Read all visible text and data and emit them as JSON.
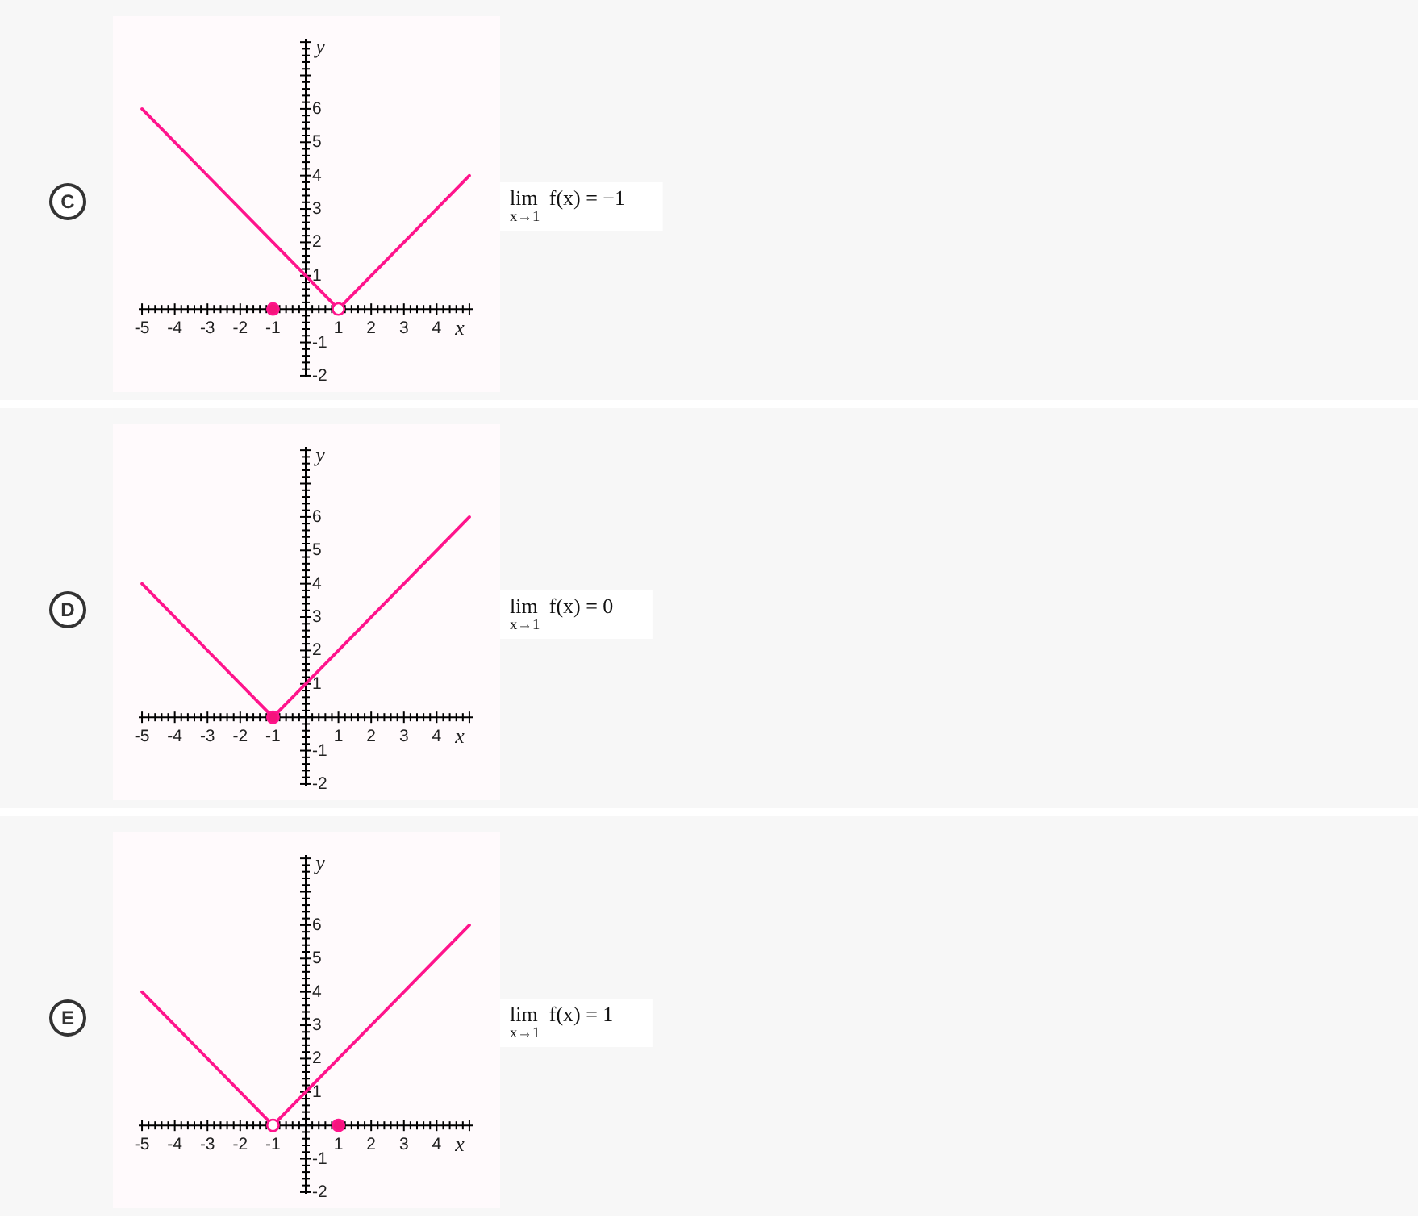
{
  "chart_data": [
    {
      "type": "line",
      "title": "C",
      "xlabel": "x",
      "ylabel": "y",
      "annotations": [
        "lim$_{x→1}$ f(x) = −1"
      ],
      "xlim": [
        -5.1,
        5.1
      ],
      "ylim": [
        -2.05,
        8.1
      ],
      "xticks": [
        -5,
        {
          "value": -4.8,
          "label": null
        },
        {
          "value": -4.6,
          "label": null
        },
        {
          "value": -4.4,
          "label": null
        },
        {
          "value": -4.2,
          "label": null
        },
        -4,
        {
          "value": -3.8,
          "label": null
        },
        {
          "value": -3.6,
          "label": null
        },
        {
          "value": -3.4,
          "label": null
        },
        {
          "value": -3.2,
          "label": null
        },
        -3,
        {
          "value": -2.8,
          "label": null
        },
        {
          "value": -2.6,
          "label": null
        },
        {
          "value": -2.4,
          "label": null
        },
        {
          "value": -2.2,
          "label": null
        },
        -2,
        {
          "value": -1.8,
          "label": null
        },
        {
          "value": -1.6,
          "label": null
        },
        {
          "value": -1.4,
          "label": null
        },
        {
          "value": -1.2,
          "label": null
        },
        -1,
        {
          "value": -0.8,
          "label": null
        },
        {
          "value": -0.6,
          "label": null
        },
        {
          "value": -0.4,
          "label": null
        },
        {
          "value": -0.2,
          "label": null
        },
        {
          "value": 0,
          "label": null
        },
        {
          "value": 0.2,
          "label": null
        },
        {
          "value": 0.4,
          "label": null
        },
        {
          "value": 0.6,
          "label": null
        },
        {
          "value": 0.8,
          "label": null
        },
        1,
        {
          "value": 1.2,
          "label": null
        },
        {
          "value": 1.4,
          "label": null
        },
        {
          "value": 1.6,
          "label": null
        },
        {
          "value": 1.8,
          "label": null
        },
        2,
        {
          "value": 2.2,
          "label": null
        },
        {
          "value": 2.4,
          "label": null
        },
        {
          "value": 2.6,
          "label": null
        },
        {
          "value": 2.8,
          "label": null
        },
        3,
        {
          "value": 3.2,
          "label": null
        },
        {
          "value": 3.4,
          "label": null
        },
        {
          "value": 3.6,
          "label": null
        },
        {
          "value": 3.8,
          "label": null
        },
        4,
        {
          "value": 4.2,
          "label": null
        },
        {
          "value": 4.4,
          "label": null
        },
        {
          "value": 4.6,
          "label": null
        },
        {
          "value": 4.8,
          "label": null
        },
        {
          "value": 5,
          "label": null
        }
      ],
      "yticks": [
        -2,
        {
          "value": -1.8,
          "label": null
        },
        {
          "value": -1.6,
          "label": null
        },
        {
          "value": -1.4,
          "label": null
        },
        {
          "value": -1.2,
          "label": null
        },
        -1,
        {
          "value": -0.8,
          "label": null
        },
        {
          "value": -0.6,
          "label": null
        },
        {
          "value": -0.4,
          "label": null
        },
        {
          "value": -0.2,
          "label": null
        },
        {
          "value": 0,
          "label": null
        },
        {
          "value": 0.2,
          "label": null
        },
        {
          "value": 0.4,
          "label": null
        },
        {
          "value": 0.6,
          "label": null
        },
        {
          "value": 0.8,
          "label": null
        },
        1,
        {
          "value": 1.2,
          "label": null
        },
        {
          "value": 1.4,
          "label": null
        },
        {
          "value": 1.6,
          "label": null
        },
        {
          "value": 1.8,
          "label": null
        },
        2,
        {
          "value": 2.2,
          "label": null
        },
        {
          "value": 2.4,
          "label": null
        },
        {
          "value": 2.6,
          "label": null
        },
        {
          "value": 2.8,
          "label": null
        },
        3,
        {
          "value": 3.2,
          "label": null
        },
        {
          "value": 3.4,
          "label": null
        },
        {
          "value": 3.6,
          "label": null
        },
        {
          "value": 3.8,
          "label": null
        },
        4,
        {
          "value": 4.2,
          "label": null
        },
        {
          "value": 4.4,
          "label": null
        },
        {
          "value": 4.6,
          "label": null
        },
        {
          "value": 4.8,
          "label": null
        },
        5,
        {
          "value": 5.2,
          "label": null
        },
        {
          "value": 5.4,
          "label": null
        },
        {
          "value": 5.6,
          "label": null
        },
        {
          "value": 5.8,
          "label": null
        },
        6,
        {
          "value": 6.2,
          "label": null
        },
        {
          "value": 6.4,
          "label": null
        },
        {
          "value": 6.6,
          "label": null
        },
        {
          "value": 6.8,
          "label": null
        },
        {
          "value": 7,
          "label": null
        },
        {
          "value": 7.2,
          "label": null
        },
        {
          "value": 7.4,
          "label": null
        },
        {
          "value": 7.6,
          "label": null
        },
        {
          "value": 7.8,
          "label": null
        },
        {
          "value": 8,
          "label": null
        }
      ],
      "series": [
        {
          "color": "#ff148c",
          "x": [
            -5,
            1
          ],
          "values": [
            6,
            0
          ]
        },
        {
          "color": "#ff148c",
          "x": [
            1,
            5
          ],
          "values": [
            0,
            4
          ]
        },
        {
          "type": "scatter",
          "marker": "circle",
          "color": "#ffffff",
          "x": [
            1
          ],
          "values": [
            0
          ]
        },
        {
          "type": "scatter",
          "marker": "circle",
          "color": "#f5147c",
          "x": [
            -1
          ],
          "values": [
            0
          ]
        }
      ]
    },
    {
      "type": "line",
      "title": "D",
      "xlabel": "x",
      "ylabel": "y",
      "annotations": [
        "lim$_{x→1}$ f(x) = 0"
      ],
      "xlim": [
        -5.1,
        5.1
      ],
      "ylim": [
        -2.05,
        8.1
      ],
      "xticks": [
        -5,
        {
          "value": -4.8,
          "label": null
        },
        {
          "value": -4.6,
          "label": null
        },
        {
          "value": -4.4,
          "label": null
        },
        {
          "value": -4.2,
          "label": null
        },
        -4,
        {
          "value": -3.8,
          "label": null
        },
        {
          "value": -3.6,
          "label": null
        },
        {
          "value": -3.4,
          "label": null
        },
        {
          "value": -3.2,
          "label": null
        },
        -3,
        {
          "value": -2.8,
          "label": null
        },
        {
          "value": -2.6,
          "label": null
        },
        {
          "value": -2.4,
          "label": null
        },
        {
          "value": -2.2,
          "label": null
        },
        -2,
        {
          "value": -1.8,
          "label": null
        },
        {
          "value": -1.6,
          "label": null
        },
        {
          "value": -1.4,
          "label": null
        },
        {
          "value": -1.2,
          "label": null
        },
        -1,
        {
          "value": -0.8,
          "label": null
        },
        {
          "value": -0.6,
          "label": null
        },
        {
          "value": -0.4,
          "label": null
        },
        {
          "value": -0.2,
          "label": null
        },
        {
          "value": 0,
          "label": null
        },
        {
          "value": 0.2,
          "label": null
        },
        {
          "value": 0.4,
          "label": null
        },
        {
          "value": 0.6,
          "label": null
        },
        {
          "value": 0.8,
          "label": null
        },
        1,
        {
          "value": 1.2,
          "label": null
        },
        {
          "value": 1.4,
          "label": null
        },
        {
          "value": 1.6,
          "label": null
        },
        {
          "value": 1.8,
          "label": null
        },
        2,
        {
          "value": 2.2,
          "label": null
        },
        {
          "value": 2.4,
          "label": null
        },
        {
          "value": 2.6,
          "label": null
        },
        {
          "value": 2.8,
          "label": null
        },
        3,
        {
          "value": 3.2,
          "label": null
        },
        {
          "value": 3.4,
          "label": null
        },
        {
          "value": 3.6,
          "label": null
        },
        {
          "value": 3.8,
          "label": null
        },
        4,
        {
          "value": 4.2,
          "label": null
        },
        {
          "value": 4.4,
          "label": null
        },
        {
          "value": 4.6,
          "label": null
        },
        {
          "value": 4.8,
          "label": null
        },
        {
          "value": 5,
          "label": null
        }
      ],
      "yticks": [
        -2,
        {
          "value": -1.8,
          "label": null
        },
        {
          "value": -1.6,
          "label": null
        },
        {
          "value": -1.4,
          "label": null
        },
        {
          "value": -1.2,
          "label": null
        },
        -1,
        {
          "value": -0.8,
          "label": null
        },
        {
          "value": -0.6,
          "label": null
        },
        {
          "value": -0.4,
          "label": null
        },
        {
          "value": -0.2,
          "label": null
        },
        {
          "value": 0,
          "label": null
        },
        {
          "value": 0.2,
          "label": null
        },
        {
          "value": 0.4,
          "label": null
        },
        {
          "value": 0.6,
          "label": null
        },
        {
          "value": 0.8,
          "label": null
        },
        1,
        {
          "value": 1.2,
          "label": null
        },
        {
          "value": 1.4,
          "label": null
        },
        {
          "value": 1.6,
          "label": null
        },
        {
          "value": 1.8,
          "label": null
        },
        2,
        {
          "value": 2.2,
          "label": null
        },
        {
          "value": 2.4,
          "label": null
        },
        {
          "value": 2.6,
          "label": null
        },
        {
          "value": 2.8,
          "label": null
        },
        3,
        {
          "value": 3.2,
          "label": null
        },
        {
          "value": 3.4,
          "label": null
        },
        {
          "value": 3.6,
          "label": null
        },
        {
          "value": 3.8,
          "label": null
        },
        4,
        {
          "value": 4.2,
          "label": null
        },
        {
          "value": 4.4,
          "label": null
        },
        {
          "value": 4.6,
          "label": null
        },
        {
          "value": 4.8,
          "label": null
        },
        5,
        {
          "value": 5.2,
          "label": null
        },
        {
          "value": 5.4,
          "label": null
        },
        {
          "value": 5.6,
          "label": null
        },
        {
          "value": 5.8,
          "label": null
        },
        6,
        {
          "value": 6.2,
          "label": null
        },
        {
          "value": 6.4,
          "label": null
        },
        {
          "value": 6.6,
          "label": null
        },
        {
          "value": 6.8,
          "label": null
        },
        {
          "value": 7,
          "label": null
        },
        {
          "value": 7.2,
          "label": null
        },
        {
          "value": 7.4,
          "label": null
        },
        {
          "value": 7.6,
          "label": null
        },
        {
          "value": 7.8,
          "label": null
        },
        {
          "value": 8,
          "label": null
        }
      ],
      "series": [
        {
          "color": "#ff148c",
          "x": [
            -5,
            -1
          ],
          "values": [
            4,
            0
          ]
        },
        {
          "color": "#ff148c",
          "x": [
            -1,
            5
          ],
          "values": [
            0,
            6
          ]
        },
        {
          "type": "scatter",
          "marker": "circle",
          "color": "#f5147c",
          "x": [
            -1
          ],
          "values": [
            0
          ]
        }
      ]
    },
    {
      "type": "line",
      "title": "E",
      "xlabel": "x",
      "ylabel": "y",
      "annotations": [
        "lim$_{x→1}$ f(x) = 1"
      ],
      "xlim": [
        -5.1,
        5.1
      ],
      "ylim": [
        -2.05,
        8.1
      ],
      "xticks": [
        -5,
        {
          "value": -4.8,
          "label": null
        },
        {
          "value": -4.6,
          "label": null
        },
        {
          "value": -4.4,
          "label": null
        },
        {
          "value": -4.2,
          "label": null
        },
        -4,
        {
          "value": -3.8,
          "label": null
        },
        {
          "value": -3.6,
          "label": null
        },
        {
          "value": -3.4,
          "label": null
        },
        {
          "value": -3.2,
          "label": null
        },
        -3,
        {
          "value": -2.8,
          "label": null
        },
        {
          "value": -2.6,
          "label": null
        },
        {
          "value": -2.4,
          "label": null
        },
        {
          "value": -2.2,
          "label": null
        },
        -2,
        {
          "value": -1.8,
          "label": null
        },
        {
          "value": -1.6,
          "label": null
        },
        {
          "value": -1.4,
          "label": null
        },
        {
          "value": -1.2,
          "label": null
        },
        -1,
        {
          "value": -0.8,
          "label": null
        },
        {
          "value": -0.6,
          "label": null
        },
        {
          "value": -0.4,
          "label": null
        },
        {
          "value": -0.2,
          "label": null
        },
        {
          "value": 0,
          "label": null
        },
        {
          "value": 0.2,
          "label": null
        },
        {
          "value": 0.4,
          "label": null
        },
        {
          "value": 0.6,
          "label": null
        },
        {
          "value": 0.8,
          "label": null
        },
        1,
        {
          "value": 1.2,
          "label": null
        },
        {
          "value": 1.4,
          "label": null
        },
        {
          "value": 1.6,
          "label": null
        },
        {
          "value": 1.8,
          "label": null
        },
        2,
        {
          "value": 2.2,
          "label": null
        },
        {
          "value": 2.4,
          "label": null
        },
        {
          "value": 2.6,
          "label": null
        },
        {
          "value": 2.8,
          "label": null
        },
        3,
        {
          "value": 3.2,
          "label": null
        },
        {
          "value": 3.4,
          "label": null
        },
        {
          "value": 3.6,
          "label": null
        },
        {
          "value": 3.8,
          "label": null
        },
        4,
        {
          "value": 4.2,
          "label": null
        },
        {
          "value": 4.4,
          "label": null
        },
        {
          "value": 4.6,
          "label": null
        },
        {
          "value": 4.8,
          "label": null
        },
        {
          "value": 5,
          "label": null
        }
      ],
      "yticks": [
        -2,
        {
          "value": -1.8,
          "label": null
        },
        {
          "value": -1.6,
          "label": null
        },
        {
          "value": -1.4,
          "label": null
        },
        {
          "value": -1.2,
          "label": null
        },
        -1,
        {
          "value": -0.8,
          "label": null
        },
        {
          "value": -0.6,
          "label": null
        },
        {
          "value": -0.4,
          "label": null
        },
        {
          "value": -0.2,
          "label": null
        },
        {
          "value": 0,
          "label": null
        },
        {
          "value": 0.2,
          "label": null
        },
        {
          "value": 0.4,
          "label": null
        },
        {
          "value": 0.6,
          "label": null
        },
        {
          "value": 0.8,
          "label": null
        },
        1,
        {
          "value": 1.2,
          "label": null
        },
        {
          "value": 1.4,
          "label": null
        },
        {
          "value": 1.6,
          "label": null
        },
        {
          "value": 1.8,
          "label": null
        },
        2,
        {
          "value": 2.2,
          "label": null
        },
        {
          "value": 2.4,
          "label": null
        },
        {
          "value": 2.6,
          "label": null
        },
        {
          "value": 2.8,
          "label": null
        },
        3,
        {
          "value": 3.2,
          "label": null
        },
        {
          "value": 3.4,
          "label": null
        },
        {
          "value": 3.6,
          "label": null
        },
        {
          "value": 3.8,
          "label": null
        },
        4,
        {
          "value": 4.2,
          "label": null
        },
        {
          "value": 4.4,
          "label": null
        },
        {
          "value": 4.6,
          "label": null
        },
        {
          "value": 4.8,
          "label": null
        },
        5,
        {
          "value": 5.2,
          "label": null
        },
        {
          "value": 5.4,
          "label": null
        },
        {
          "value": 5.6,
          "label": null
        },
        {
          "value": 5.8,
          "label": null
        },
        6,
        {
          "value": 6.2,
          "label": null
        },
        {
          "value": 6.4,
          "label": null
        },
        {
          "value": 6.6,
          "label": null
        },
        {
          "value": 6.8,
          "label": null
        },
        {
          "value": 7,
          "label": null
        },
        {
          "value": 7.2,
          "label": null
        },
        {
          "value": 7.4,
          "label": null
        },
        {
          "value": 7.6,
          "label": null
        },
        {
          "value": 7.8,
          "label": null
        },
        {
          "value": 8,
          "label": null
        }
      ],
      "series": [
        {
          "color": "#ff148c",
          "x": [
            -5,
            -1
          ],
          "values": [
            4,
            0
          ]
        },
        {
          "color": "#ff148c",
          "x": [
            -1,
            5
          ],
          "values": [
            0,
            6
          ]
        },
        {
          "type": "scatter",
          "marker": "circle",
          "color": "#ffffff",
          "x": [
            -1
          ],
          "values": [
            0
          ]
        },
        {
          "type": "scatter",
          "marker": "circle",
          "color": "#f5147c",
          "x": [
            1
          ],
          "values": [
            0
          ]
        }
      ]
    }
  ]
}
